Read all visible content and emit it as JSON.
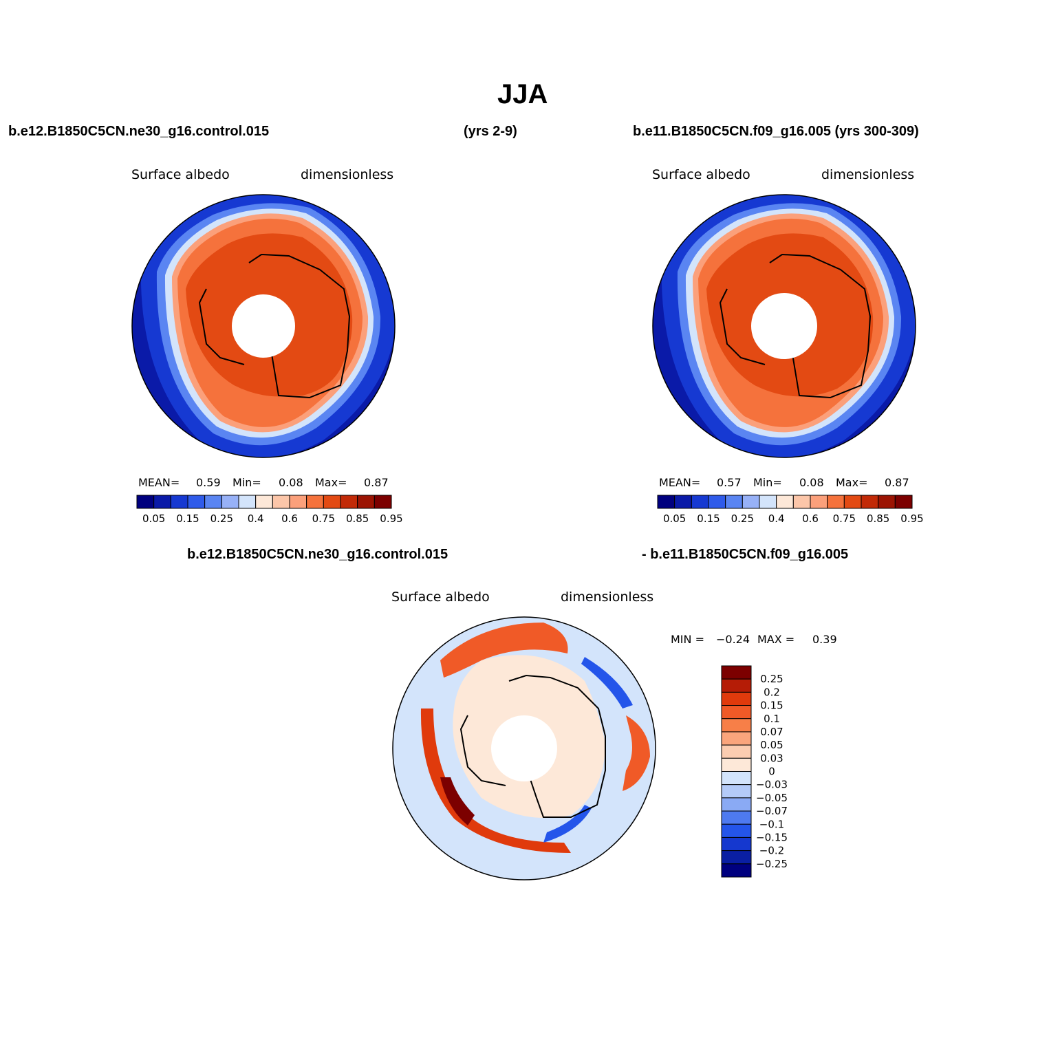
{
  "title": "JJA",
  "top_left": {
    "case": "b.e12.B1850C5CN.ne30_g16.control.015",
    "years": "(yrs 2-9)",
    "field": "Surface albedo",
    "units": "dimensionless",
    "mean_label": "MEAN=",
    "mean": "0.59",
    "min_label": "Min=",
    "min": "0.08",
    "max_label": "Max=",
    "max": "0.87"
  },
  "top_right": {
    "case": "b.e11.B1850C5CN.f09_g16.005 (yrs 300-309)",
    "field": "Surface albedo",
    "units": "dimensionless",
    "mean_label": "MEAN=",
    "mean": "0.57",
    "min_label": "Min=",
    "min": "0.08",
    "max_label": "Max=",
    "max": "0.87"
  },
  "diff": {
    "case_a": "b.e12.B1850C5CN.ne30_g16.control.015",
    "case_b": "- b.e11.B1850C5CN.f09_g16.005",
    "field": "Surface albedo",
    "units": "dimensionless",
    "min_label": "MIN =",
    "min": "−0.24",
    "max_label": "MAX =",
    "max": "0.39"
  },
  "abs_colorbar": {
    "colors": [
      "#00007f",
      "#0a1aa8",
      "#1639d2",
      "#2f5bea",
      "#5a85f2",
      "#97b1f7",
      "#d3e4fb",
      "#fde8d8",
      "#fcc6a9",
      "#fba07b",
      "#f5723c",
      "#e34a13",
      "#c22a07",
      "#9c1403",
      "#7c0000"
    ],
    "tick_labels": [
      "0.05",
      "0.15",
      "0.25",
      "0.4",
      "0.6",
      "0.75",
      "0.85",
      "0.95"
    ]
  },
  "diff_colorbar": {
    "colors": [
      "#7c0000",
      "#b51c06",
      "#e03a0c",
      "#f05a27",
      "#f77f48",
      "#faa57c",
      "#fbcdb1",
      "#fde8d8",
      "#d3e4fb",
      "#b4cbf8",
      "#8aaaf4",
      "#4e7af0",
      "#2455ea",
      "#1538cf",
      "#0a1fa3",
      "#00007f"
    ],
    "tick_labels": [
      "0.25",
      "0.2",
      "0.15",
      "0.1",
      "0.07",
      "0.05",
      "0.03",
      "0",
      "−0.03",
      "−0.05",
      "−0.07",
      "−0.1",
      "−0.15",
      "−0.2",
      "−0.25"
    ]
  }
}
